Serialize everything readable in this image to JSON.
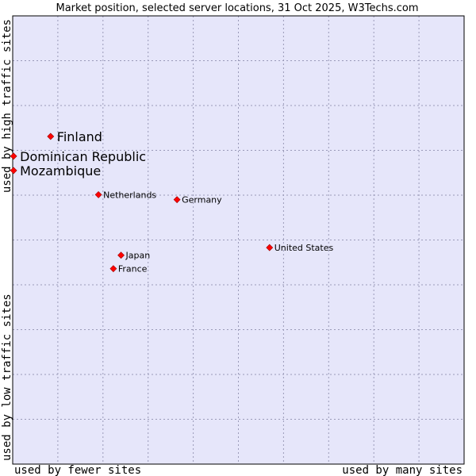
{
  "chart_data": {
    "type": "scatter",
    "title": "Market position, selected server locations, 31 Oct 2025, W3Techs.com",
    "xlabel_left": "used by fewer sites",
    "xlabel_right": "used by many sites",
    "ylabel_bottom": "used by low traffic sites",
    "ylabel_top": "used by high traffic sites",
    "xlim": [
      0,
      100
    ],
    "ylim": [
      0,
      100
    ],
    "grid": true,
    "colors": {
      "plot_bg": "#e6e6fa",
      "grid": "#9a9ab8",
      "marker": "#ff0000",
      "marker_edge": "#990000",
      "text": "#000000"
    },
    "points": [
      {
        "label": "Finland",
        "x": 8.4,
        "y": 73.1,
        "emphasis": true
      },
      {
        "label": "Dominican Republic",
        "x": 0.2,
        "y": 68.7,
        "emphasis": true
      },
      {
        "label": "Mozambique",
        "x": 0.2,
        "y": 65.5,
        "emphasis": true
      },
      {
        "label": "Netherlands",
        "x": 19.0,
        "y": 60.1,
        "emphasis": false
      },
      {
        "label": "Germany",
        "x": 36.4,
        "y": 59.0,
        "emphasis": false
      },
      {
        "label": "United States",
        "x": 56.9,
        "y": 48.3,
        "emphasis": false
      },
      {
        "label": "Japan",
        "x": 24.0,
        "y": 46.6,
        "emphasis": false
      },
      {
        "label": "France",
        "x": 22.3,
        "y": 43.6,
        "emphasis": false
      }
    ]
  }
}
